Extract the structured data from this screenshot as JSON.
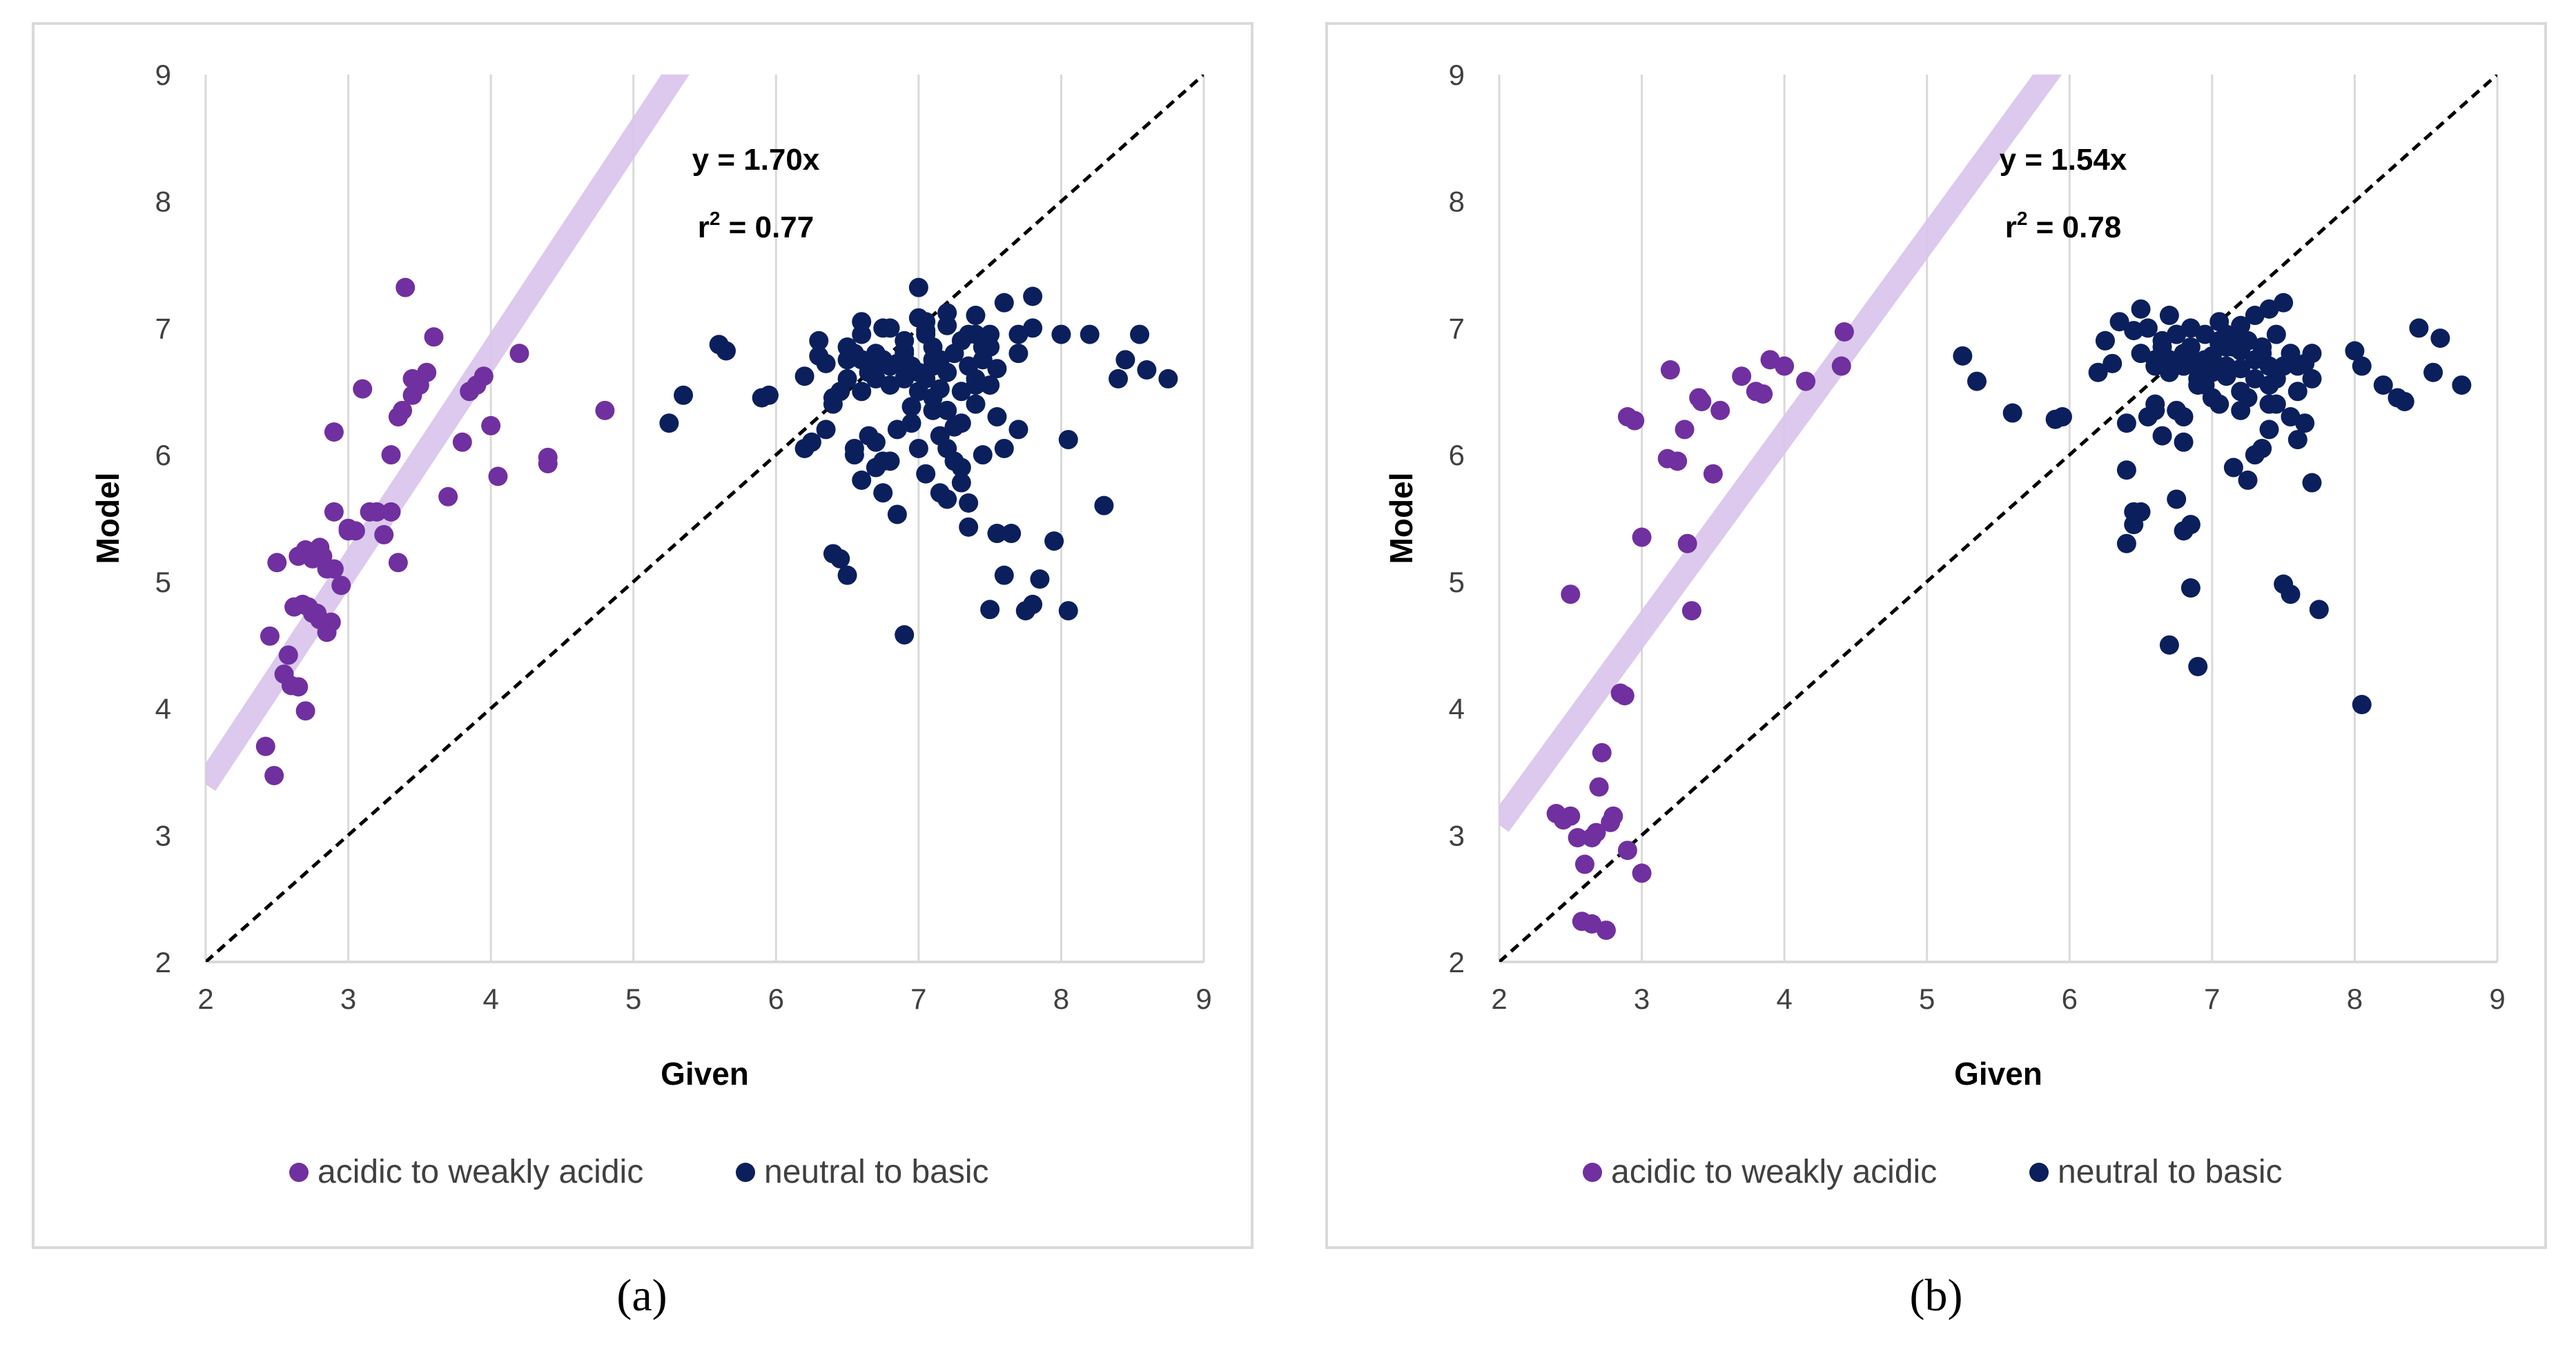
{
  "captions": [
    "(a)",
    "(b)"
  ],
  "colors": {
    "acidic": "#7030a0",
    "basic": "#0b1f5c",
    "trend": "#d9c4ec",
    "identity": "#000000",
    "axis": "#d9d9d9"
  },
  "chart_data": [
    {
      "type": "scatter",
      "panel_label": "a",
      "xlabel": "Given",
      "ylabel": "Model",
      "xlim": [
        2,
        9
      ],
      "ylim": [
        2,
        9
      ],
      "xticks": [
        "2",
        "3",
        "4",
        "5",
        "6",
        "7",
        "8",
        "9"
      ],
      "yticks": [
        "2",
        "3",
        "4",
        "5",
        "6",
        "7",
        "8",
        "9"
      ],
      "grid": "vertical",
      "reference_line": {
        "type": "identity",
        "style": "dashed"
      },
      "trendline": {
        "slope": 1.7,
        "intercept": 0
      },
      "annotation": {
        "equation": "y = 1.70x",
        "r2_label": "r",
        "r2_exp": "2",
        "r2_value": " = 0.77"
      },
      "legend": {
        "position": "bottom",
        "entries": [
          "acidic to weakly acidic",
          "neutral to basic"
        ]
      },
      "series": [
        {
          "name": "acidic to weakly acidic",
          "x": [
            2.42,
            2.48,
            2.45,
            2.55,
            2.6,
            2.58,
            2.65,
            2.7,
            2.75,
            2.8,
            2.85,
            2.88,
            2.9,
            2.72,
            2.68,
            2.62,
            2.78,
            2.82,
            2.5,
            2.65,
            2.7,
            2.75,
            2.8,
            2.85,
            2.9,
            2.95,
            3.0,
            3.05,
            3.1,
            3.2,
            3.3,
            3.35,
            3.38,
            3.4,
            3.45,
            3.5,
            3.55,
            3.6,
            3.3,
            3.15,
            2.9,
            3.0,
            3.25,
            3.7,
            3.8,
            3.85,
            3.9,
            3.95,
            4.0,
            4.05,
            4.2,
            4.4,
            4.4,
            4.8,
            3.45,
            3.35
          ],
          "y": [
            3.7,
            3.47,
            4.57,
            4.27,
            4.18,
            4.42,
            4.17,
            3.98,
            4.75,
            4.7,
            4.6,
            4.68,
            5.1,
            4.8,
            4.82,
            4.8,
            4.75,
            5.2,
            5.15,
            5.2,
            5.25,
            5.18,
            5.27,
            5.1,
            5.55,
            4.97,
            5.4,
            5.4,
            6.52,
            5.55,
            6.0,
            6.3,
            6.35,
            7.32,
            6.47,
            6.55,
            6.65,
            6.93,
            5.55,
            5.55,
            6.18,
            5.42,
            5.37,
            5.67,
            6.1,
            6.5,
            6.55,
            6.62,
            6.23,
            5.83,
            6.8,
            5.93,
            5.98,
            6.35,
            6.6,
            5.15
          ]
        },
        {
          "name": "neutral to basic",
          "x": [
            5.25,
            5.35,
            5.6,
            5.65,
            5.9,
            5.95,
            6.2,
            6.25,
            6.3,
            6.35,
            6.4,
            6.45,
            6.5,
            6.55,
            6.6,
            6.65,
            6.7,
            6.75,
            6.8,
            6.85,
            6.9,
            6.95,
            7.0,
            7.05,
            7.1,
            7.15,
            7.2,
            7.25,
            7.3,
            7.35,
            7.4,
            7.45,
            7.5,
            7.55,
            7.6,
            7.65,
            7.7,
            7.75,
            7.8,
            7.85,
            7.95,
            8.05,
            8.2,
            8.3,
            8.4,
            8.45,
            8.55,
            8.6,
            8.75,
            6.45,
            6.5,
            6.85,
            7.05,
            7.1,
            7.2,
            7.3,
            7.4,
            7.55,
            7.7,
            7.8,
            6.55,
            6.6,
            6.65,
            6.7,
            6.75,
            6.8,
            6.85,
            6.9,
            6.95,
            7.0,
            7.05,
            7.1,
            7.15,
            7.2,
            7.25,
            7.35,
            7.4,
            7.45,
            7.5,
            6.4,
            6.5,
            6.6,
            6.7,
            6.8,
            6.9,
            7.0,
            7.1,
            7.2,
            7.3,
            7.4,
            7.5,
            6.6,
            6.75,
            6.9,
            7.05,
            7.2,
            7.35,
            6.7,
            6.85,
            7.0,
            7.15,
            7.3,
            7.45,
            7.6,
            6.3,
            6.5,
            6.7,
            6.9,
            7.1,
            7.3,
            7.5,
            7.2,
            7.0,
            6.8,
            6.6,
            6.4,
            6.2,
            7.4,
            7.6,
            7.7,
            7.8,
            8.0,
            8.05,
            7.55,
            7.25,
            7.05,
            6.95,
            6.75,
            6.55,
            6.35,
            7.15,
            7.35
          ],
          "y": [
            6.25,
            6.47,
            6.87,
            6.82,
            6.45,
            6.47,
            6.05,
            6.1,
            6.78,
            6.72,
            5.22,
            5.18,
            5.05,
            6.05,
            5.8,
            6.15,
            5.9,
            5.7,
            5.95,
            5.53,
            4.58,
            6.38,
            7.32,
            7.05,
            6.85,
            6.52,
            5.65,
            6.22,
            5.78,
            5.43,
            6.95,
            6.85,
            4.78,
            5.38,
            5.05,
            5.38,
            6.2,
            4.77,
            4.82,
            5.02,
            5.32,
            4.77,
            6.95,
            5.6,
            6.6,
            6.75,
            6.95,
            6.67,
            6.6,
            6.5,
            6.75,
            6.72,
            6.95,
            6.35,
            6.05,
            6.25,
            6.55,
            6.68,
            6.8,
            7.25,
            6.8,
            6.75,
            6.65,
            6.7,
            6.75,
            6.7,
            6.72,
            6.8,
            6.7,
            6.65,
            6.6,
            6.7,
            6.75,
            6.65,
            6.8,
            6.7,
            6.6,
            6.75,
            6.85,
            6.4,
            6.6,
            6.5,
            6.6,
            6.55,
            6.6,
            6.5,
            6.45,
            6.35,
            6.5,
            6.4,
            6.55,
            6.95,
            7.0,
            6.9,
            6.98,
            7.02,
            6.95,
            6.1,
            6.2,
            6.05,
            6.15,
            5.9,
            6.0,
            6.05,
            6.9,
            6.85,
            6.8,
            6.82,
            6.75,
            6.9,
            6.95,
            7.12,
            7.08,
            7.0,
            7.05,
            6.45,
            6.62,
            7.1,
            7.2,
            6.95,
            7.0,
            6.95,
            6.12,
            6.3,
            5.95,
            5.85,
            6.25,
            5.95,
            6.0,
            6.2,
            5.7,
            5.62
          ]
        }
      ]
    },
    {
      "type": "scatter",
      "panel_label": "b",
      "xlabel": "Given",
      "ylabel": "Model",
      "xlim": [
        2,
        9
      ],
      "ylim": [
        2,
        9
      ],
      "xticks": [
        "2",
        "3",
        "4",
        "5",
        "6",
        "7",
        "8",
        "9"
      ],
      "yticks": [
        "2",
        "3",
        "4",
        "5",
        "6",
        "7",
        "8",
        "9"
      ],
      "grid": "vertical",
      "reference_line": {
        "type": "identity",
        "style": "dashed"
      },
      "trendline": {
        "slope": 1.54,
        "intercept": 0
      },
      "annotation": {
        "equation": "y = 1.54x",
        "r2_label": "r",
        "r2_exp": "2",
        "r2_value": " = 0.78"
      },
      "legend": {
        "position": "bottom",
        "entries": [
          "acidic to weakly acidic",
          "neutral to basic"
        ]
      },
      "series": [
        {
          "name": "acidic to weakly acidic",
          "x": [
            2.4,
            2.45,
            2.5,
            2.55,
            2.58,
            2.6,
            2.65,
            2.68,
            2.7,
            2.72,
            2.75,
            2.78,
            2.8,
            2.85,
            2.88,
            2.9,
            2.9,
            2.95,
            3.0,
            3.2,
            3.25,
            3.3,
            3.32,
            3.35,
            3.4,
            3.42,
            3.5,
            3.55,
            3.7,
            3.8,
            3.85,
            3.9,
            4.0,
            4.15,
            4.4,
            4.42,
            3.18,
            3.0,
            2.65,
            2.5
          ],
          "y": [
            3.17,
            3.12,
            4.9,
            2.98,
            2.32,
            2.77,
            2.3,
            3.02,
            3.38,
            3.65,
            2.25,
            3.1,
            3.15,
            4.12,
            4.1,
            2.88,
            6.3,
            6.27,
            2.7,
            6.67,
            5.95,
            6.2,
            5.3,
            4.77,
            6.45,
            6.42,
            5.85,
            6.35,
            6.62,
            6.5,
            6.48,
            6.75,
            6.7,
            6.58,
            6.7,
            6.97,
            5.97,
            5.35,
            2.98,
            3.15
          ]
        },
        {
          "name": "neutral to basic",
          "x": [
            5.25,
            5.35,
            5.6,
            5.9,
            5.95,
            6.2,
            6.25,
            6.3,
            6.4,
            6.45,
            6.5,
            6.55,
            6.6,
            6.65,
            6.7,
            6.75,
            6.8,
            6.85,
            6.9,
            6.95,
            7.0,
            7.05,
            7.1,
            7.15,
            7.2,
            7.25,
            7.3,
            7.35,
            7.4,
            7.45,
            7.5,
            7.55,
            7.6,
            7.65,
            7.7,
            7.75,
            8.0,
            8.05,
            8.2,
            8.3,
            8.35,
            8.45,
            8.55,
            8.6,
            8.75,
            6.4,
            6.45,
            6.75,
            6.8,
            6.85,
            7.55,
            7.7,
            8.05,
            6.65,
            6.75,
            6.8,
            6.95,
            7.05,
            7.1,
            7.2,
            7.3,
            7.4,
            7.5,
            6.6,
            6.7,
            6.8,
            6.9,
            7.0,
            7.1,
            7.2,
            7.3,
            7.4,
            6.5,
            6.6,
            6.7,
            6.8,
            6.9,
            7.0,
            7.1,
            7.2,
            7.3,
            7.4,
            7.5,
            6.55,
            6.65,
            6.75,
            6.85,
            6.95,
            7.05,
            7.15,
            7.25,
            7.35,
            7.45,
            7.55,
            7.65,
            6.45,
            6.35,
            6.25,
            7.6,
            7.7,
            6.5,
            7.0,
            7.2,
            7.4,
            6.4,
            6.6,
            6.8,
            6.9,
            7.05,
            7.25,
            7.45,
            7.6,
            6.7,
            6.85,
            7.15,
            7.35
          ],
          "y": [
            6.78,
            6.58,
            6.33,
            6.28,
            6.3,
            6.65,
            6.9,
            6.72,
            5.3,
            5.45,
            5.55,
            6.3,
            6.4,
            6.15,
            4.5,
            5.65,
            5.4,
            4.95,
            4.33,
            6.55,
            6.65,
            6.9,
            6.85,
            5.9,
            6.35,
            5.8,
            6.0,
            6.05,
            6.2,
            6.4,
            4.98,
            4.9,
            6.12,
            6.25,
            5.78,
            4.78,
            6.82,
            4.03,
            6.55,
            6.45,
            6.42,
            7.0,
            6.65,
            6.92,
            6.55,
            5.88,
            5.55,
            6.35,
            6.1,
            5.45,
            6.3,
            6.8,
            6.7,
            6.85,
            6.95,
            6.7,
            6.75,
            7.05,
            6.95,
            7.02,
            7.1,
            7.15,
            7.2,
            6.7,
            6.75,
            6.8,
            6.72,
            6.78,
            6.7,
            6.82,
            6.75,
            6.7,
            6.8,
            6.75,
            6.65,
            6.7,
            6.6,
            6.7,
            6.62,
            6.68,
            6.6,
            6.55,
            6.7,
            7.0,
            6.9,
            6.95,
            6.85,
            6.95,
            6.88,
            6.92,
            6.9,
            6.85,
            6.95,
            6.8,
            6.72,
            6.98,
            7.05,
            6.9,
            6.5,
            6.6,
            7.15,
            6.45,
            6.5,
            6.4,
            6.25,
            6.35,
            6.3,
            6.55,
            6.4,
            6.45,
            6.6,
            6.7,
            7.1,
            7.0,
            6.85,
            6.8
          ]
        }
      ]
    }
  ]
}
